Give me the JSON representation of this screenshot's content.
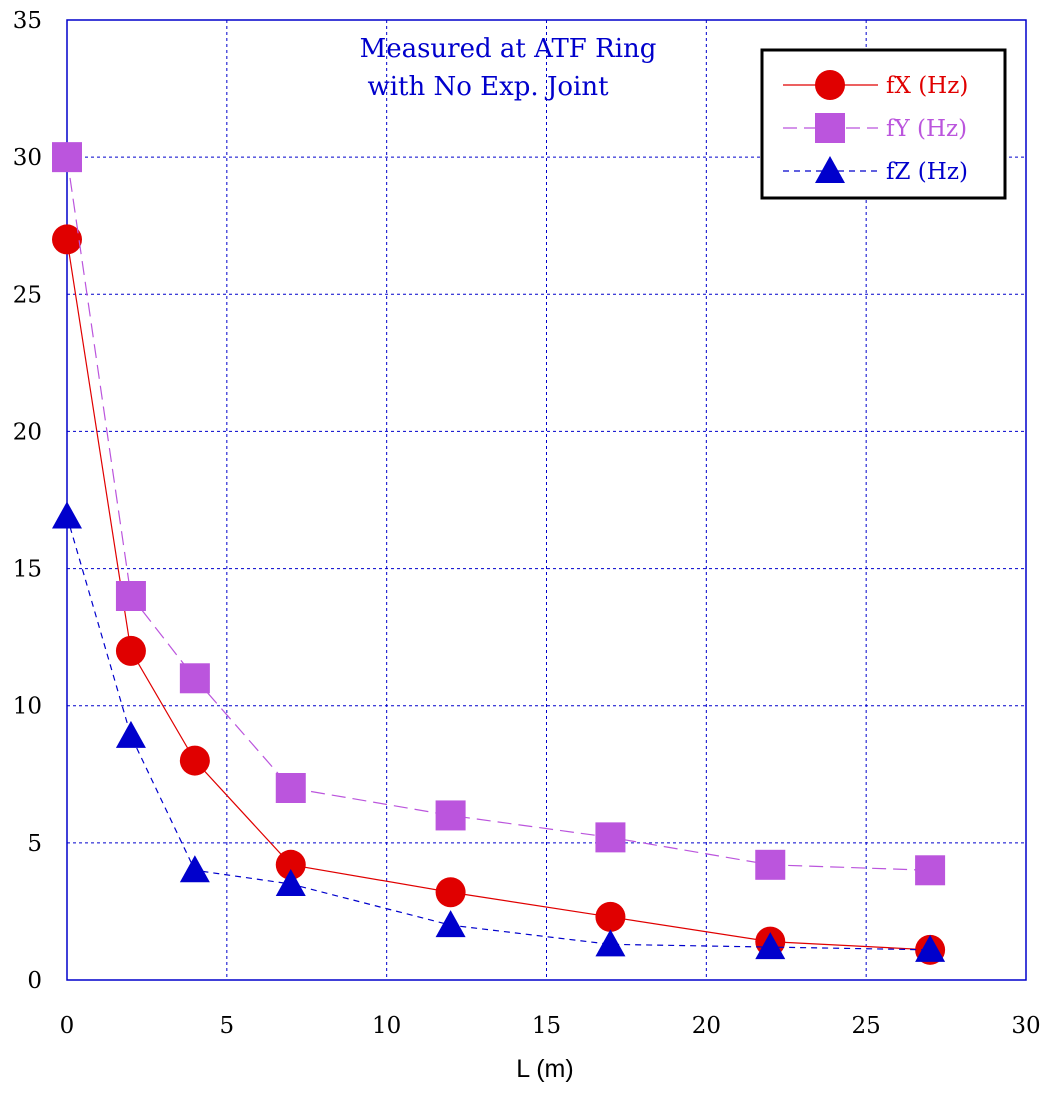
{
  "chart_data": {
    "type": "line",
    "title_lines": [
      "Measured at ATF Ring",
      "with No Exp. Joint"
    ],
    "xlabel": "L (m)",
    "ylabel": "",
    "xlim": [
      0,
      30
    ],
    "ylim": [
      0,
      35
    ],
    "xticks": [
      "0",
      "5",
      "10",
      "15",
      "20",
      "25",
      "30"
    ],
    "yticks": [
      "0",
      "5",
      "10",
      "15",
      "20",
      "25",
      "30",
      "35"
    ],
    "grid": true,
    "legend_position": "top-right",
    "x": [
      0,
      2,
      4,
      7,
      12,
      17,
      22,
      27
    ],
    "series": [
      {
        "name": "fX (Hz)",
        "color": "#e00000",
        "marker": "circle",
        "line": "solid",
        "values": [
          27,
          12,
          8,
          4.2,
          3.2,
          2.3,
          1.4,
          1.1
        ]
      },
      {
        "name": "fY (Hz)",
        "color": "#bb55dd",
        "marker": "square",
        "line": "long-dash",
        "values": [
          30,
          14,
          11,
          7,
          6,
          5.2,
          4.2,
          4
        ]
      },
      {
        "name": "fZ (Hz)",
        "color": "#0000cc",
        "marker": "triangle",
        "line": "short-dash",
        "values": [
          16.9,
          8.9,
          4,
          3.5,
          2,
          1.3,
          1.2,
          1.1
        ]
      }
    ],
    "colors": {
      "grid": "#0000cc",
      "frame": "#0000cc",
      "title": "#0000cc"
    }
  }
}
